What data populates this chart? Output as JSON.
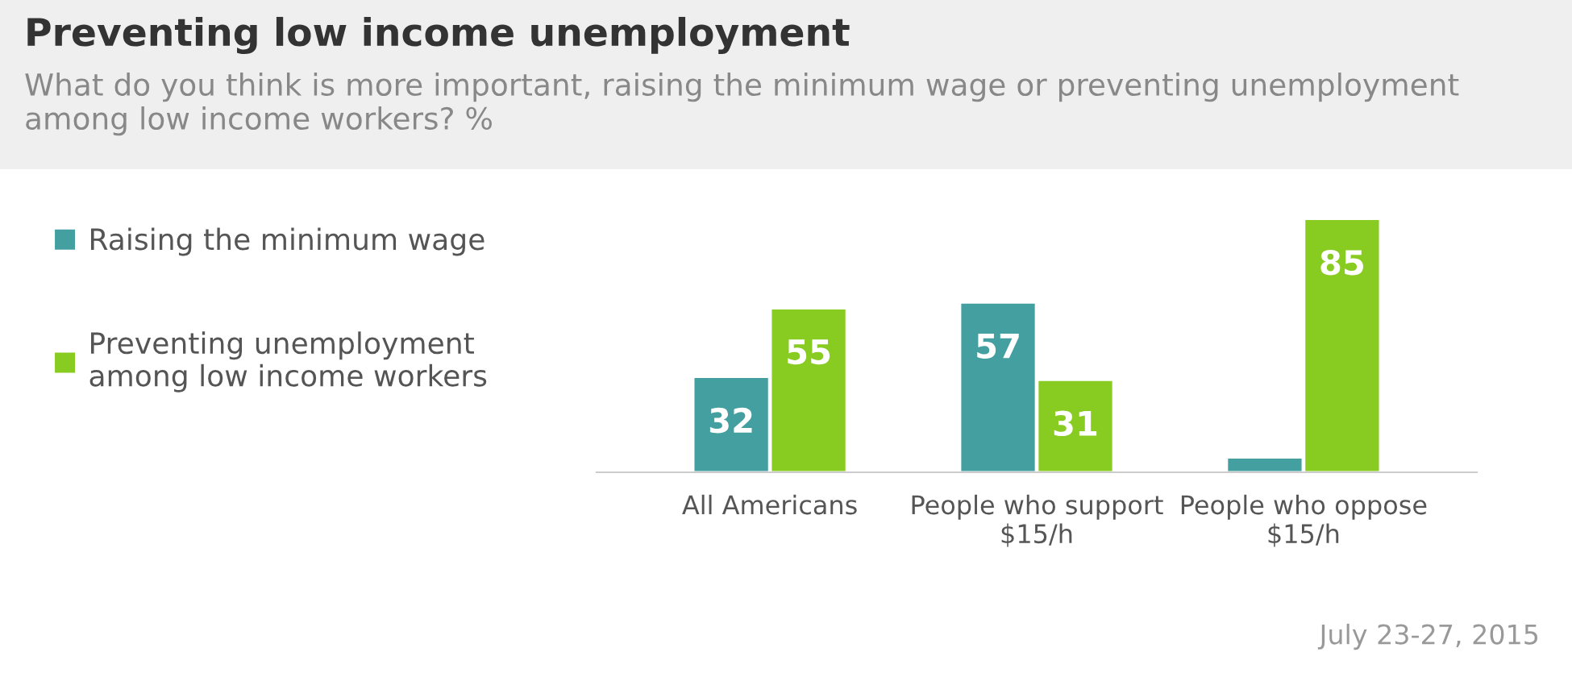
{
  "chart_data": {
    "type": "bar",
    "title": "Preventing low income unemployment",
    "subtitle": "What do you think is more important, raising the minimum wage or preventing unemployment among low income workers? %",
    "categories": [
      "All Americans",
      "People who support\n$15/h",
      "People who oppose\n$15/h"
    ],
    "series": [
      {
        "name": "Raising the minimum wage",
        "color": "#44a0a0",
        "values": [
          32,
          57,
          5
        ],
        "value_labels": [
          "32",
          "57",
          null
        ]
      },
      {
        "name": "Preventing unemployment\namong low income workers",
        "color": "#88cc22",
        "values": [
          55,
          31,
          85
        ],
        "value_labels": [
          "55",
          "31",
          "85"
        ]
      }
    ],
    "legend": "left",
    "grid": false,
    "annotations": [
      "July 23-27, 2015"
    ]
  }
}
